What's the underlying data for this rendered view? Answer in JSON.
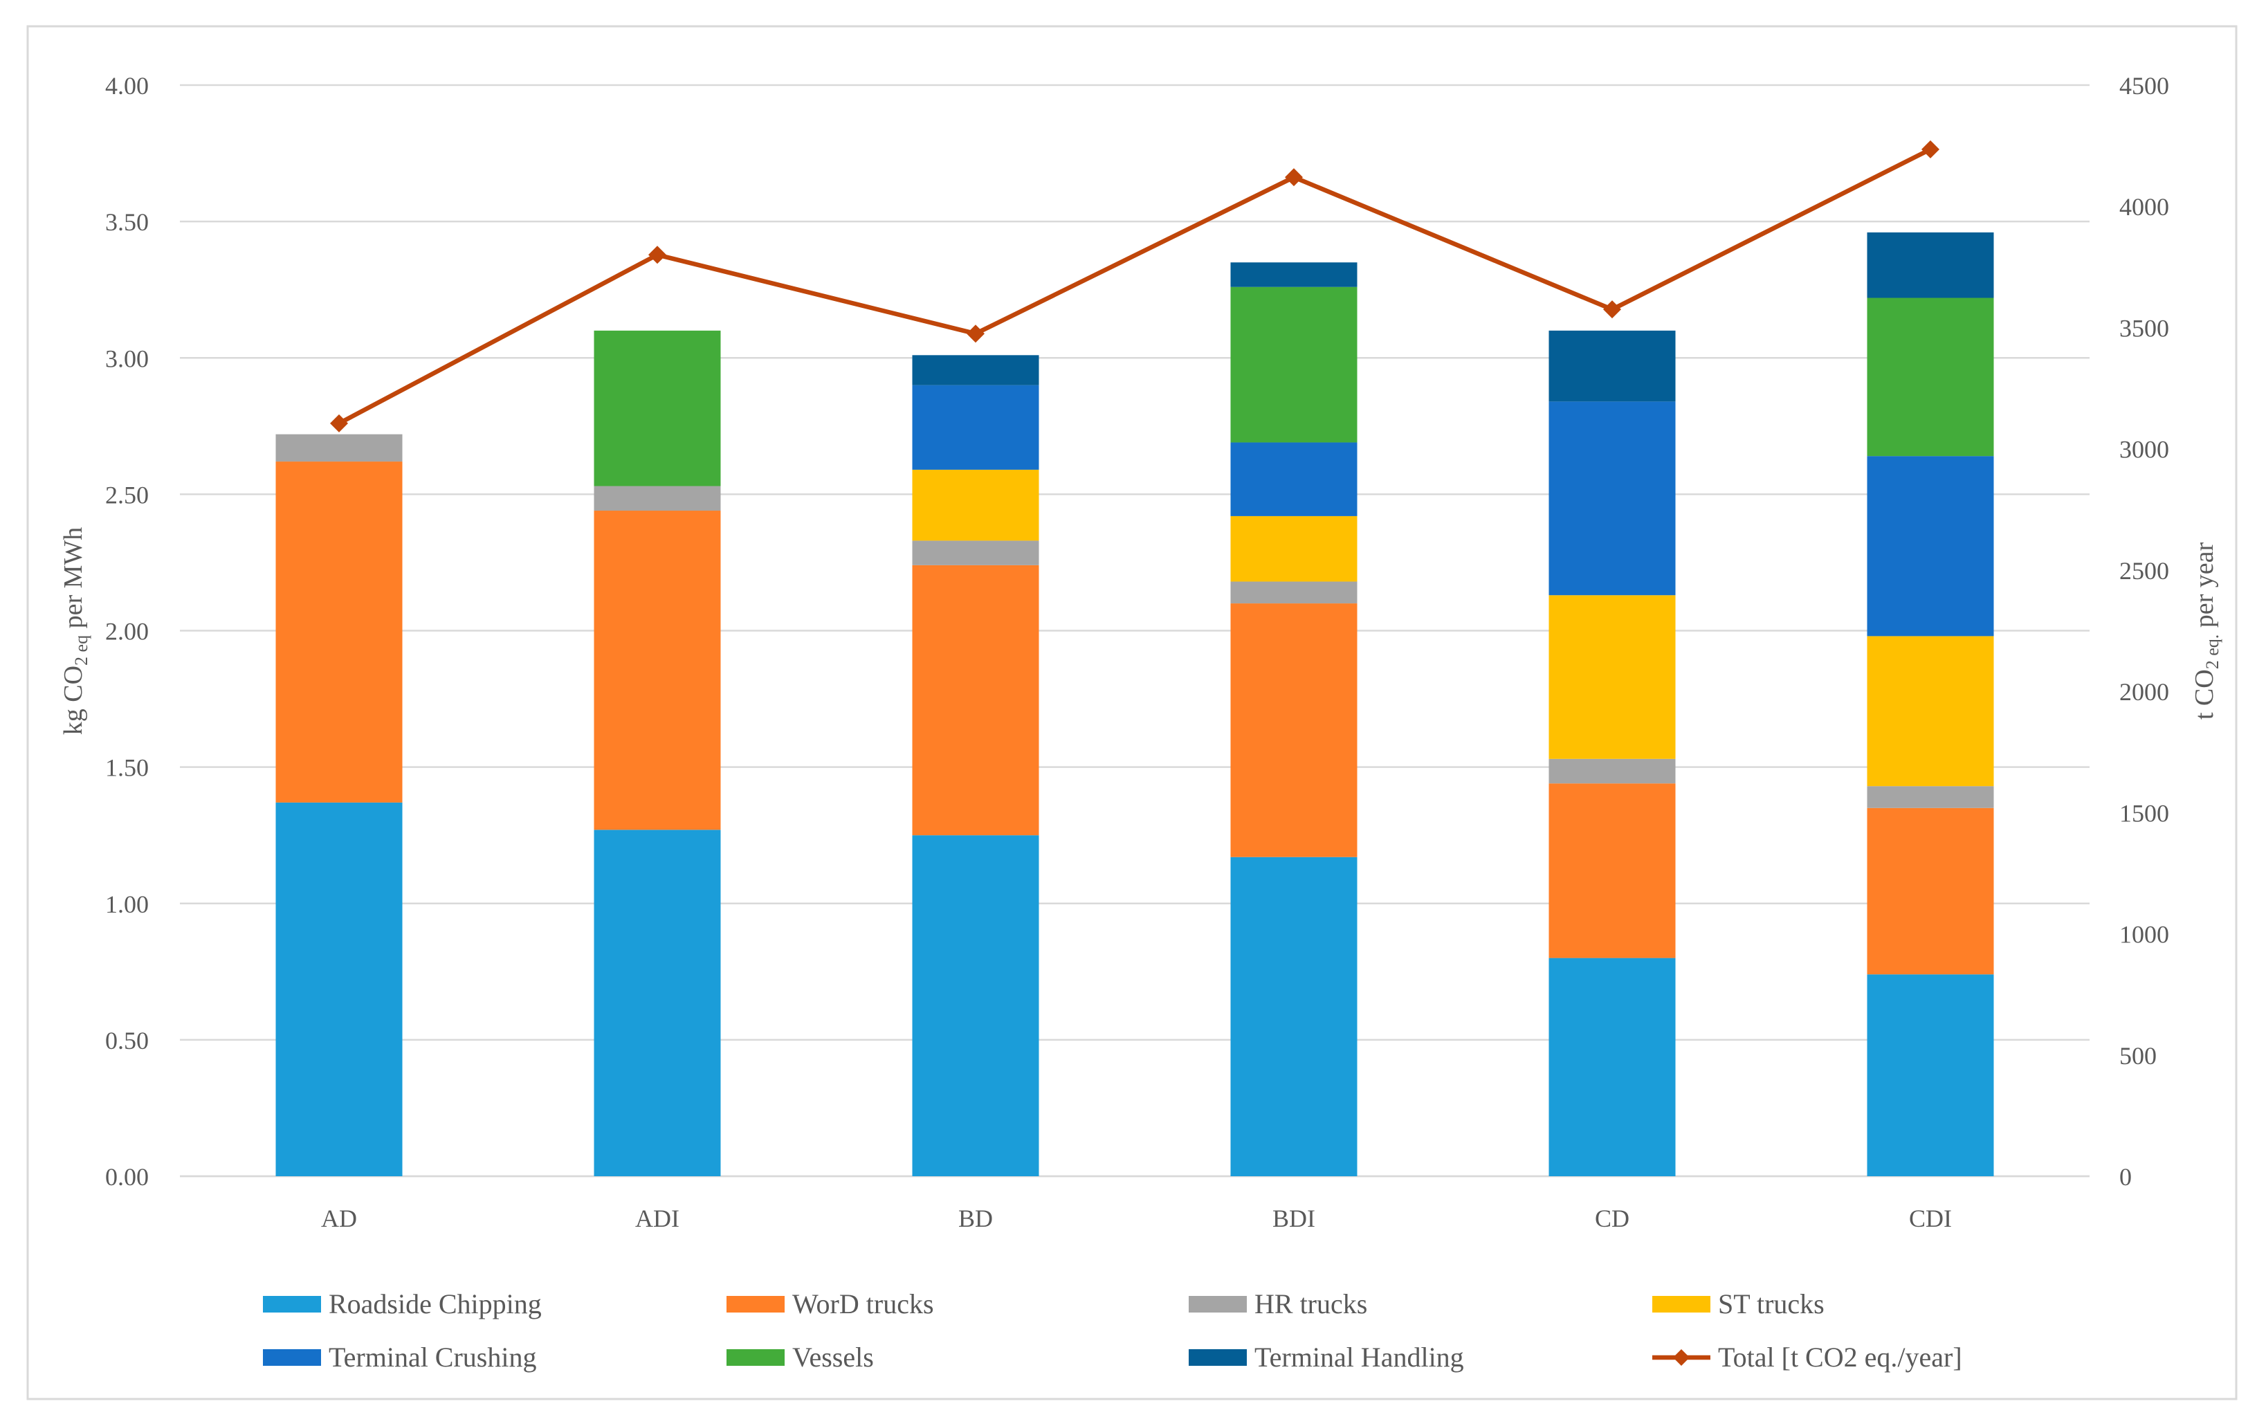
{
  "chart_data": {
    "type": "bar",
    "stacked": true,
    "categories": [
      "AD",
      "ADI",
      "BD",
      "BDI",
      "CD",
      "CDI"
    ],
    "ylabel": "kg CO2 eq per MWh",
    "ylabel_parts": {
      "pre": "kg CO",
      "sub": "2 eq",
      "post": " per MWh"
    },
    "y2label": "t CO2 eq. per year",
    "y2label_parts": {
      "pre": "t CO",
      "sub": "2 eq.",
      "post": " per year"
    },
    "ylim": [
      0,
      4.0
    ],
    "yticks": [
      "0.00",
      "0.50",
      "1.00",
      "1.50",
      "2.00",
      "2.50",
      "3.00",
      "3.50",
      "4.00"
    ],
    "y2lim": [
      0,
      4500
    ],
    "y2ticks": [
      "0",
      "500",
      "1000",
      "1500",
      "2000",
      "2500",
      "3000",
      "3500",
      "4000",
      "4500"
    ],
    "grid": true,
    "legend_position": "bottom",
    "series": [
      {
        "name": "Roadside Chipping",
        "color": "#1B9DD9",
        "values": [
          1.37,
          1.27,
          1.25,
          1.17,
          0.8,
          0.74
        ]
      },
      {
        "name": "WorD trucks",
        "color": "#FF7F27",
        "values": [
          1.25,
          1.17,
          0.99,
          0.93,
          0.64,
          0.61
        ]
      },
      {
        "name": "HR trucks",
        "color": "#A5A5A5",
        "values": [
          0.1,
          0.09,
          0.09,
          0.08,
          0.09,
          0.08
        ]
      },
      {
        "name": "ST trucks",
        "color": "#FFC000",
        "values": [
          0,
          0,
          0.26,
          0.24,
          0.6,
          0.55
        ]
      },
      {
        "name": "Terminal Crushing",
        "color": "#1570C9",
        "values": [
          0,
          0,
          0.31,
          0.27,
          0.71,
          0.66
        ]
      },
      {
        "name": "Vessels",
        "color": "#43AC3A",
        "values": [
          0,
          0.57,
          0,
          0.57,
          0,
          0.58
        ]
      },
      {
        "name": "Terminal Handling",
        "color": "#045E95",
        "values": [
          0,
          0,
          0.11,
          0.09,
          0.26,
          0.24
        ]
      }
    ],
    "line_series": {
      "name": "Total [t CO2 eq./year]",
      "color": "#C0460A",
      "axis": "right",
      "values": [
        3105,
        3800,
        3475,
        4120,
        3575,
        4235
      ]
    }
  }
}
